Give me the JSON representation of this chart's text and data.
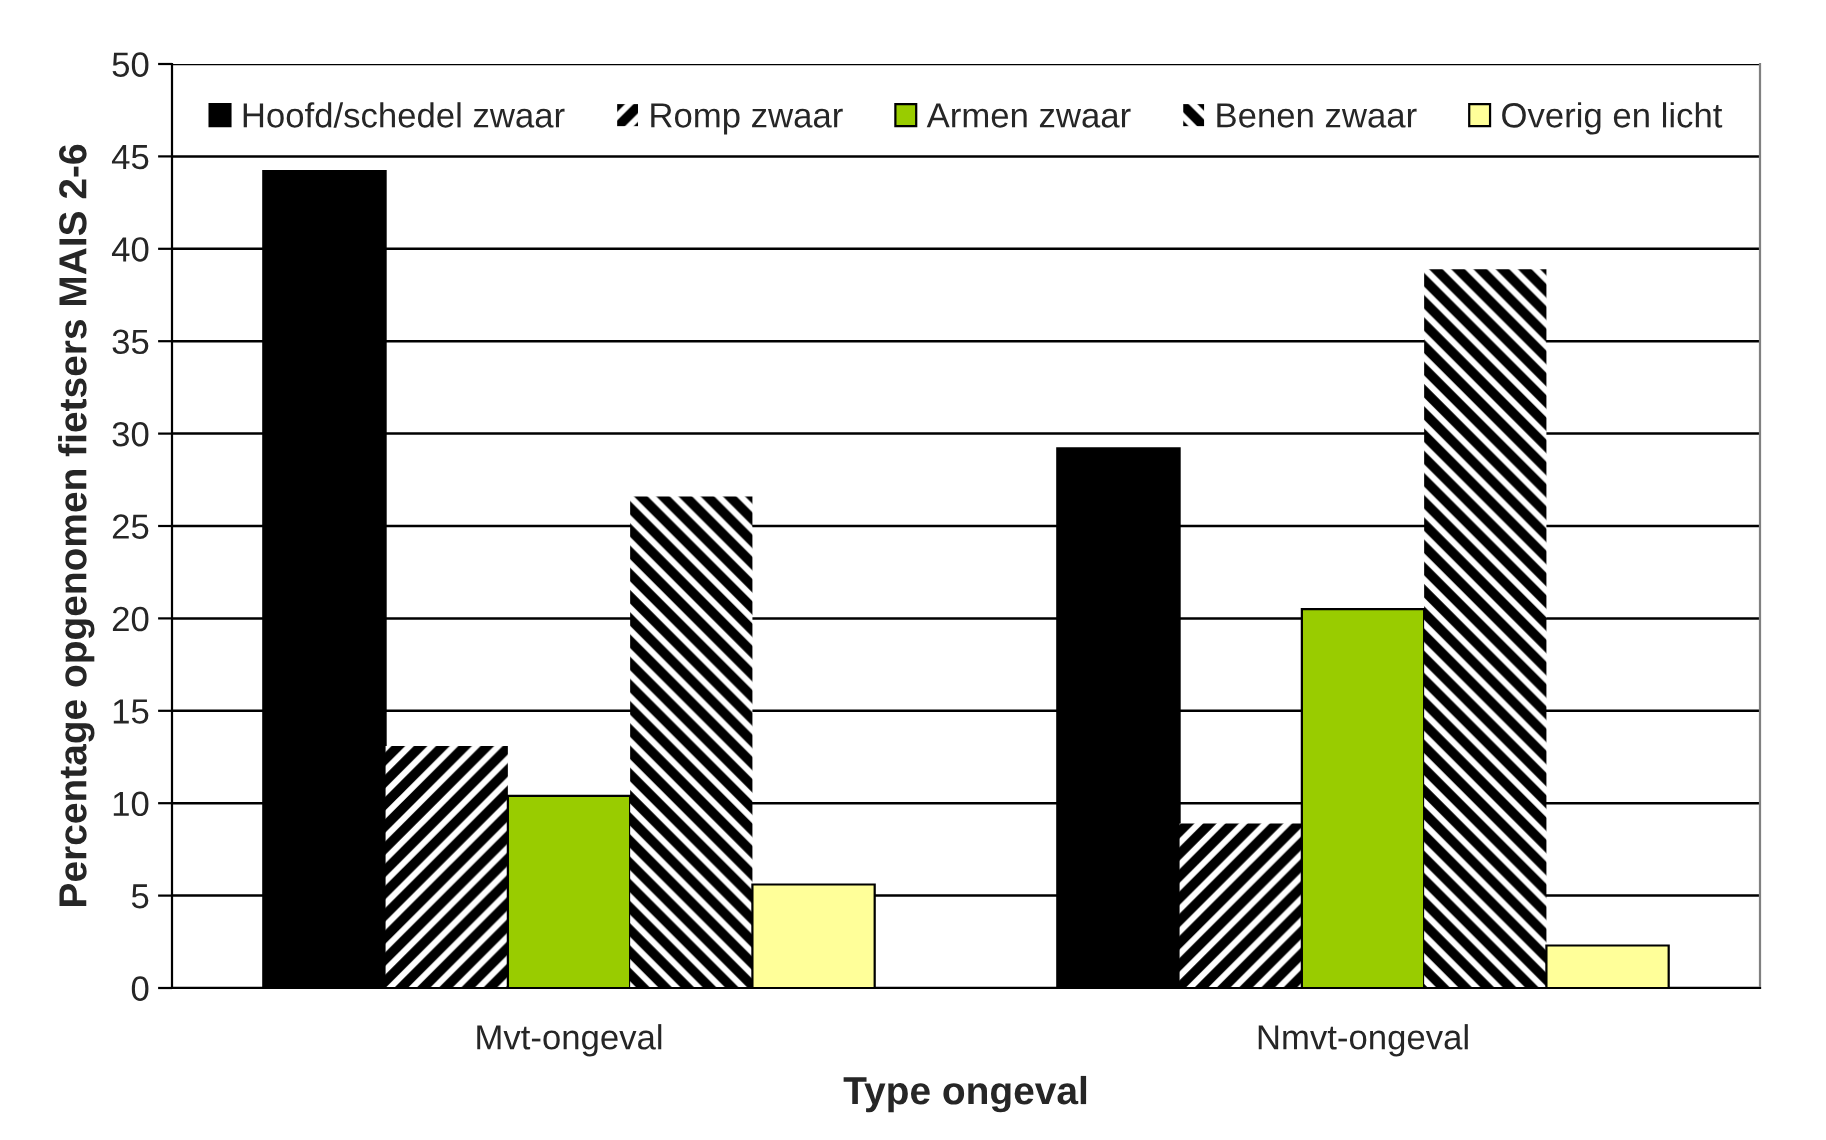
{
  "chart_data": {
    "type": "bar",
    "xlabel": "Type ongeval",
    "ylabel": "Percentage opgenomen fietsers MAIS 2-6",
    "categories": [
      "Mvt-ongeval",
      "Nmvt-ongeval"
    ],
    "series": [
      {
        "name": "Hoofd/schedel zwaar",
        "color": "#000000",
        "values": [
          44.2,
          29.2
        ]
      },
      {
        "name": "Romp zwaar",
        "color": "#000000",
        "values": [
          13.1,
          8.9
        ]
      },
      {
        "name": "Armen zwaar",
        "color": "#99cc00",
        "values": [
          10.4,
          20.5
        ]
      },
      {
        "name": "Benen zwaar",
        "color": "#000000",
        "values": [
          26.6,
          38.9
        ]
      },
      {
        "name": "Overig en licht",
        "color": "#ffff99",
        "values": [
          5.6,
          2.3
        ]
      }
    ],
    "ylim": [
      0,
      50
    ],
    "yticks": [
      0,
      5,
      10,
      15,
      20,
      25,
      30,
      35,
      40,
      45,
      50
    ],
    "grid": "y",
    "legend": "top"
  }
}
